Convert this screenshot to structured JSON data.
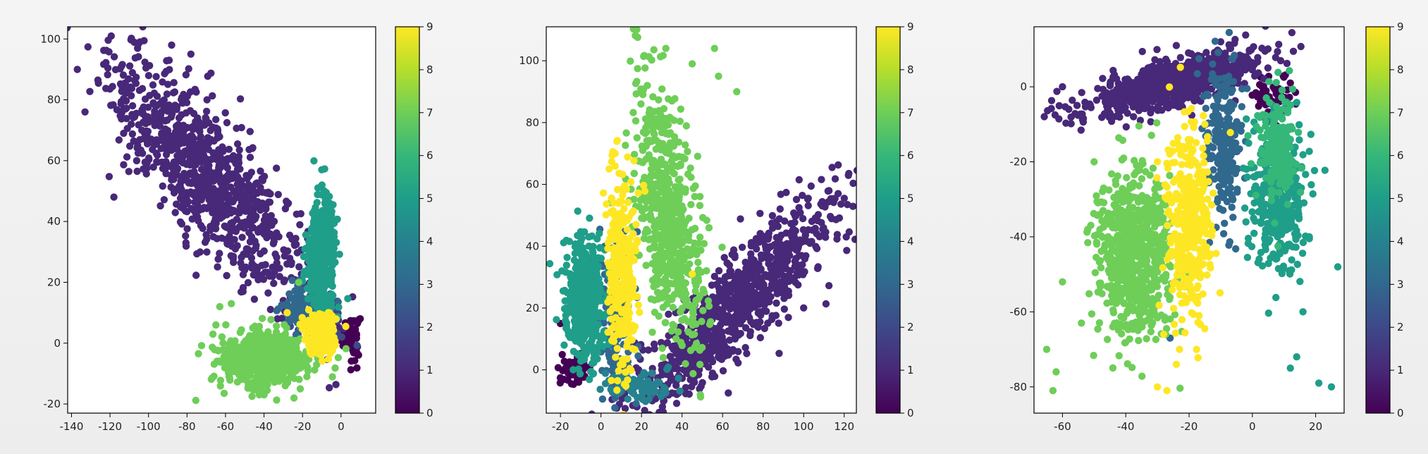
{
  "chart_data": [
    {
      "type": "scatter",
      "title": "",
      "xlabel": "",
      "ylabel": "",
      "xlim": [
        -142,
        18
      ],
      "ylim": [
        -23,
        104
      ],
      "xticks": [
        -140,
        -120,
        -100,
        -80,
        -60,
        -40,
        -20,
        0
      ],
      "yticks": [
        -20,
        0,
        20,
        40,
        60,
        80,
        100
      ],
      "grid": false,
      "colorbar": {
        "ticks": [
          0,
          1,
          2,
          3,
          4,
          5,
          6,
          7,
          8,
          9
        ],
        "range": [
          0,
          9
        ],
        "colormap": "viridis"
      },
      "clusters": [
        {
          "label": 0,
          "center": [
            5,
            2
          ],
          "spread": [
            3,
            5
          ],
          "angle": 0,
          "count": 60,
          "points": [
            [
              8,
              3
            ],
            [
              10,
              8
            ]
          ]
        },
        {
          "label": 1,
          "center": [
            -70,
            55
          ],
          "spread": [
            42,
            13
          ],
          "angle": -35,
          "count": 900,
          "points": [
            [
              -88,
              98
            ],
            [
              -137,
              90
            ],
            [
              -133,
              76
            ],
            [
              -118,
              48
            ],
            [
              -78,
              95
            ],
            [
              -30,
              14
            ],
            [
              -12,
              20
            ],
            [
              -33,
              8
            ]
          ]
        },
        {
          "label": 2,
          "center": [
            -12,
            7
          ],
          "spread": [
            8,
            6
          ],
          "angle": 0,
          "count": 120,
          "points": []
        },
        {
          "label": 3,
          "center": [
            -18,
            12
          ],
          "spread": [
            9,
            6
          ],
          "angle": 0,
          "count": 100,
          "points": []
        },
        {
          "label": 5,
          "center": [
            -10,
            28
          ],
          "spread": [
            5,
            13
          ],
          "angle": 0,
          "count": 380,
          "points": [
            [
              -10,
              57
            ],
            [
              -7,
              45
            ]
          ]
        },
        {
          "label": 7,
          "center": [
            -40,
            -5
          ],
          "spread": [
            15,
            6
          ],
          "angle": 0,
          "count": 650,
          "points": [
            [
              -57,
              13
            ],
            [
              -63,
              12
            ],
            [
              -65,
              6
            ],
            [
              -22,
              20
            ],
            [
              -40,
              -17
            ]
          ]
        },
        {
          "label": 9,
          "center": [
            -10,
            2
          ],
          "spread": [
            6,
            5
          ],
          "angle": -30,
          "count": 160,
          "points": [
            [
              -28,
              10
            ]
          ]
        }
      ]
    },
    {
      "type": "scatter",
      "title": "",
      "xlabel": "",
      "ylabel": "",
      "xlim": [
        -27,
        126
      ],
      "ylim": [
        -14,
        111
      ],
      "xticks": [
        -20,
        0,
        20,
        40,
        60,
        80,
        100,
        120
      ],
      "yticks": [
        0,
        20,
        40,
        60,
        80,
        100
      ],
      "grid": false,
      "colorbar": {
        "ticks": [
          0,
          1,
          2,
          3,
          4,
          5,
          6,
          7,
          8,
          9
        ],
        "range": [
          0,
          9
        ],
        "colormap": "viridis"
      },
      "clusters": [
        {
          "label": 0,
          "center": [
            -12,
            0
          ],
          "spread": [
            5,
            3
          ],
          "angle": 0,
          "count": 60,
          "points": [
            [
              -20,
              15
            ]
          ]
        },
        {
          "label": 1,
          "center": [
            65,
            20
          ],
          "spread": [
            42,
            9
          ],
          "angle": 33,
          "count": 900,
          "points": [
            [
              117,
              57
            ],
            [
              121,
              43
            ],
            [
              30,
              0
            ],
            [
              38,
              28
            ]
          ]
        },
        {
          "label": 3,
          "center": [
            8,
            15
          ],
          "spread": [
            6,
            20
          ],
          "angle": 0,
          "count": 160,
          "points": [
            [
              15,
              -7
            ],
            [
              25,
              -8
            ]
          ]
        },
        {
          "label": 4,
          "center": [
            18,
            -5
          ],
          "spread": [
            10,
            3
          ],
          "angle": 0,
          "count": 90,
          "points": []
        },
        {
          "label": 5,
          "center": [
            -8,
            22
          ],
          "spread": [
            7,
            14
          ],
          "angle": 0,
          "count": 450,
          "points": [
            [
              -6,
              43
            ],
            [
              -15,
              30
            ]
          ]
        },
        {
          "label": 7,
          "center": [
            33,
            50
          ],
          "spread": [
            9,
            30
          ],
          "angle": 12,
          "count": 650,
          "points": [
            [
              32,
              104
            ],
            [
              56,
              104
            ],
            [
              45,
              99
            ],
            [
              58,
              95
            ],
            [
              67,
              90
            ],
            [
              35,
              87
            ]
          ]
        },
        {
          "label": 9,
          "center": [
            10,
            30
          ],
          "spread": [
            5,
            22
          ],
          "angle": 0,
          "count": 280,
          "points": [
            [
              7,
              70
            ],
            [
              4,
              65
            ],
            [
              45,
              31
            ]
          ]
        }
      ]
    },
    {
      "type": "scatter",
      "title": "",
      "xlabel": "",
      "ylabel": "",
      "xlim": [
        -69,
        29
      ],
      "ylim": [
        -87,
        16
      ],
      "xticks": [
        -60,
        -40,
        -20,
        0,
        20
      ],
      "yticks": [
        -80,
        -60,
        -40,
        -20,
        0
      ],
      "grid": false,
      "colorbar": {
        "ticks": [
          0,
          1,
          2,
          3,
          4,
          5,
          6,
          7,
          8,
          9
        ],
        "range": [
          0,
          9
        ],
        "colormap": "viridis"
      },
      "clusters": [
        {
          "label": 0,
          "center": [
            7,
            -3
          ],
          "spread": [
            4,
            4
          ],
          "angle": 0,
          "count": 70,
          "points": [
            [
              12,
              1
            ],
            [
              3,
              -8
            ]
          ]
        },
        {
          "label": 1,
          "center": [
            -25,
            1
          ],
          "spread": [
            19,
            4
          ],
          "angle": 13,
          "count": 700,
          "points": [
            [
              -60,
              0
            ],
            [
              -58,
              -6
            ],
            [
              -10,
              12
            ],
            [
              -2,
              8
            ]
          ]
        },
        {
          "label": 3,
          "center": [
            -9,
            -15
          ],
          "spread": [
            4,
            14
          ],
          "angle": 0,
          "count": 240,
          "points": [
            [
              -26,
              -67
            ]
          ]
        },
        {
          "label": 5,
          "center": [
            8,
            -30
          ],
          "spread": [
            6,
            14
          ],
          "angle": 0,
          "count": 320,
          "points": [
            [
              18,
              -40
            ],
            [
              27,
              -48
            ],
            [
              25,
              -80
            ],
            [
              21,
              -79
            ],
            [
              12,
              -75
            ],
            [
              14,
              -72
            ],
            [
              16,
              -60
            ]
          ]
        },
        {
          "label": 6,
          "center": [
            8,
            -17
          ],
          "spread": [
            4,
            10
          ],
          "angle": 0,
          "count": 200,
          "points": []
        },
        {
          "label": 7,
          "center": [
            -38,
            -45
          ],
          "spread": [
            8,
            15
          ],
          "angle": 0,
          "count": 700,
          "points": [
            [
              -63,
              -81
            ],
            [
              -62,
              -76
            ],
            [
              -65,
              -70
            ],
            [
              -54,
              -63
            ],
            [
              -60,
              -52
            ],
            [
              -52,
              -38
            ],
            [
              -47,
              -27
            ],
            [
              -50,
              -20
            ]
          ]
        },
        {
          "label": 9,
          "center": [
            -20,
            -35
          ],
          "spread": [
            5,
            16
          ],
          "angle": 0,
          "count": 380,
          "points": [
            [
              -30,
              -80
            ],
            [
              -27,
              -81
            ],
            [
              -28,
              -66
            ],
            [
              -23,
              -70
            ],
            [
              -24,
              -74
            ],
            [
              -15,
              -10
            ],
            [
              -30,
              -20
            ]
          ]
        }
      ]
    }
  ]
}
